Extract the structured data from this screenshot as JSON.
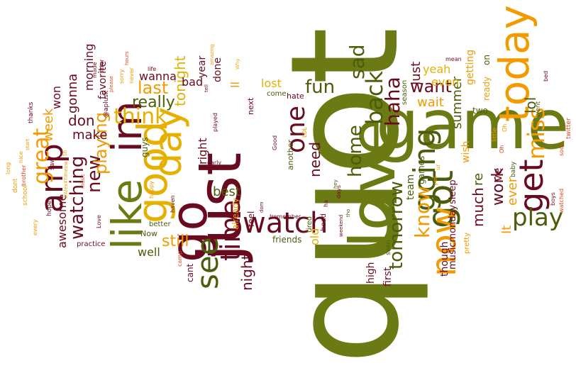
{
  "palette": {
    "olive": "#6b7a12",
    "olive_dark": "#4a5d0a",
    "maroon": "#6a0a1e",
    "orange": "#f29a00",
    "amber": "#e5b000",
    "orange_red": "#d84a1e",
    "background": "#ffffff"
  },
  "words": [
    {
      "text": "quot",
      "color": "olive"
    },
    {
      "text": "just",
      "color": "maroon"
    },
    {
      "text": "game",
      "color": "olive"
    },
    {
      "text": "love",
      "color": "olive"
    },
    {
      "text": "go",
      "color": "maroon"
    },
    {
      "text": "day",
      "color": "amber"
    },
    {
      "text": "like",
      "color": "olive"
    },
    {
      "text": "good",
      "color": "amber"
    },
    {
      "text": "im",
      "color": "maroon"
    },
    {
      "text": "today",
      "color": "orange"
    },
    {
      "text": "got",
      "color": "olive_dark"
    },
    {
      "text": "get",
      "color": "maroon"
    },
    {
      "text": "now",
      "color": "orange"
    },
    {
      "text": "going",
      "color": "olive_dark"
    },
    {
      "text": "watch",
      "color": "maroon"
    },
    {
      "text": "time",
      "color": "maroon"
    },
    {
      "text": "see",
      "color": "olive_dark"
    },
    {
      "text": "one",
      "color": "maroon"
    },
    {
      "text": "amp",
      "color": "maroon"
    },
    {
      "text": "play",
      "color": "olive_dark"
    },
    {
      "text": "home",
      "color": "olive_dark"
    },
    {
      "text": "back",
      "color": "olive_dark"
    },
    {
      "text": "sad",
      "color": "olive_dark"
    },
    {
      "text": "know",
      "color": "orange"
    },
    {
      "text": "haha",
      "color": "maroon"
    },
    {
      "text": "miss",
      "color": "orange"
    },
    {
      "text": "think",
      "color": "amber"
    },
    {
      "text": "great",
      "color": "orange"
    },
    {
      "text": "tomorrow",
      "color": "olive_dark"
    },
    {
      "text": "fun",
      "color": "olive_dark"
    },
    {
      "text": "new",
      "color": "maroon"
    },
    {
      "text": "watching",
      "color": "maroon"
    },
    {
      "text": "playing",
      "color": "orange"
    },
    {
      "text": "last",
      "color": "orange"
    },
    {
      "text": "really",
      "color": "olive_dark"
    },
    {
      "text": "still",
      "color": "orange"
    },
    {
      "text": "want",
      "color": "maroon"
    },
    {
      "text": "lol",
      "color": "olive_dark"
    },
    {
      "text": "work",
      "color": "maroon"
    },
    {
      "text": "much",
      "color": "maroon"
    },
    {
      "text": "ever",
      "color": "orange"
    },
    {
      "text": "night",
      "color": "maroon"
    },
    {
      "text": "need",
      "color": "maroon"
    },
    {
      "text": "tonight",
      "color": "amber"
    },
    {
      "text": "don",
      "color": "maroon"
    },
    {
      "text": "make",
      "color": "maroon"
    },
    {
      "text": "gonna",
      "color": "maroon"
    },
    {
      "text": "week",
      "color": "orange"
    },
    {
      "text": "awesome",
      "color": "maroon"
    },
    {
      "text": "best",
      "color": "olive_dark"
    },
    {
      "text": "right",
      "color": "maroon"
    },
    {
      "text": "wait",
      "color": "orange"
    },
    {
      "text": "Just",
      "color": "maroon"
    },
    {
      "text": "re",
      "color": "olive_dark"
    },
    {
      "text": "It",
      "color": "orange"
    },
    {
      "text": "ve",
      "color": "maroon"
    },
    {
      "text": "summer",
      "color": "olive_dark"
    },
    {
      "text": "getting",
      "color": "orange"
    },
    {
      "text": "even",
      "color": "amber"
    },
    {
      "text": "yeah",
      "color": "amber"
    },
    {
      "text": "ll",
      "color": "orange"
    },
    {
      "text": "lost",
      "color": "amber"
    },
    {
      "text": "bad",
      "color": "maroon"
    },
    {
      "text": "year",
      "color": "maroon"
    },
    {
      "text": "wanna",
      "color": "maroon"
    },
    {
      "text": "well",
      "color": "olive_dark"
    },
    {
      "text": "morning",
      "color": "maroon"
    },
    {
      "text": "favorite",
      "color": "maroon"
    },
    {
      "text": "won",
      "color": "maroon"
    },
    {
      "text": "done",
      "color": "maroon"
    },
    {
      "text": "old",
      "color": "amber"
    },
    {
      "text": "first",
      "color": "maroon"
    },
    {
      "text": "high",
      "color": "maroon"
    },
    {
      "text": "team",
      "color": "olive_dark"
    },
    {
      "text": "games",
      "color": "olive_dark"
    },
    {
      "text": "though",
      "color": "maroon"
    },
    {
      "text": "musicmonday",
      "color": "maroon"
    },
    {
      "text": "sleep",
      "color": "maroon"
    },
    {
      "text": "wish",
      "color": "orange"
    },
    {
      "text": "ready",
      "color": "orange"
    },
    {
      "text": "on",
      "color": "olive_dark"
    },
    {
      "text": "two",
      "color": "olive_dark"
    },
    {
      "text": "cant",
      "color": "maroon"
    },
    {
      "text": "feel",
      "color": "maroon"
    },
    {
      "text": "already",
      "color": "orange"
    },
    {
      "text": "friends",
      "color": "olive_dark"
    },
    {
      "text": "guys",
      "color": "olive_dark"
    },
    {
      "text": "practice",
      "color": "maroon"
    },
    {
      "text": "Now",
      "color": "olive_dark"
    },
    {
      "text": "better",
      "color": "olive_dark"
    },
    {
      "text": "season",
      "color": "olive_dark"
    },
    {
      "text": "hate",
      "color": "maroon"
    },
    {
      "text": "come",
      "color": "olive_dark"
    },
    {
      "text": "next",
      "color": "maroon"
    },
    {
      "text": "another",
      "color": "olive_dark"
    },
    {
      "text": "tired",
      "color": "olive_dark"
    },
    {
      "text": "head",
      "color": "maroon"
    },
    {
      "text": "seen",
      "color": "olive_dark"
    },
    {
      "text": "pretty",
      "color": "orange"
    },
    {
      "text": "little",
      "color": "orange"
    },
    {
      "text": "baby",
      "color": "olive_dark"
    },
    {
      "text": "went",
      "color": "olive_dark"
    },
    {
      "text": "twitter",
      "color": "orange_red"
    },
    {
      "text": "soon",
      "color": "orange_red"
    },
    {
      "text": "boys",
      "color": "maroon"
    },
    {
      "text": "watched",
      "color": "orange_red"
    },
    {
      "text": "played",
      "color": "maroon"
    },
    {
      "text": "early",
      "color": "maroon"
    },
    {
      "text": "ha",
      "color": "maroon"
    },
    {
      "text": "days",
      "color": "maroon"
    },
    {
      "text": "thanks",
      "color": "maroon"
    },
    {
      "text": "saw",
      "color": "maroon"
    },
    {
      "text": "nice",
      "color": "orange"
    },
    {
      "text": "hope",
      "color": "maroon"
    },
    {
      "text": "school",
      "color": "orange"
    },
    {
      "text": "@aplusk",
      "color": "maroon"
    },
    {
      "text": "sorry",
      "color": "orange"
    },
    {
      "text": "never",
      "color": "orange"
    },
    {
      "text": "made",
      "color": "maroon"
    },
    {
      "text": "life",
      "color": "maroon"
    },
    {
      "text": "later",
      "color": "maroon"
    },
    {
      "text": "mean",
      "color": "maroon"
    },
    {
      "text": "Love",
      "color": "maroon"
    },
    {
      "text": "Oh",
      "color": "orange_red"
    },
    {
      "text": "yes",
      "color": "orange"
    },
    {
      "text": "ur",
      "color": "orange"
    },
    {
      "text": "bed",
      "color": "maroon"
    },
    {
      "text": "camp",
      "color": "orange_red"
    },
    {
      "text": "happy",
      "color": "orange"
    },
    {
      "text": "haven",
      "color": "maroon"
    },
    {
      "text": "music",
      "color": "orange_red"
    },
    {
      "text": "dont",
      "color": "orange"
    },
    {
      "text": "every",
      "color": "orange"
    },
    {
      "text": "brother",
      "color": "orange_red"
    },
    {
      "text": "long",
      "color": "orange"
    },
    {
      "text": "start",
      "color": "orange"
    },
    {
      "text": "#Alex4Timeuw",
      "color": "orange"
    },
    {
      "text": "please",
      "color": "orange_red"
    },
    {
      "text": "hours",
      "color": "orange_red"
    },
    {
      "text": "amazing",
      "color": "orange"
    },
    {
      "text": "tell",
      "color": "maroon"
    },
    {
      "text": "Why",
      "color": "amber"
    },
    {
      "text": "Good",
      "color": "maroon"
    },
    {
      "text": "LOL",
      "color": "orange"
    },
    {
      "text": "dom",
      "color": "maroon"
    },
    {
      "text": "hey",
      "color": "olive_dark"
    },
    {
      "text": "tho",
      "color": "olive_dark"
    },
    {
      "text": "weekend",
      "color": "maroon"
    },
    {
      "text": "Iremember",
      "color": "maroon"
    },
    {
      "text": "th",
      "color": "orange"
    },
    {
      "text": "Oh",
      "color": "orange"
    }
  ]
}
